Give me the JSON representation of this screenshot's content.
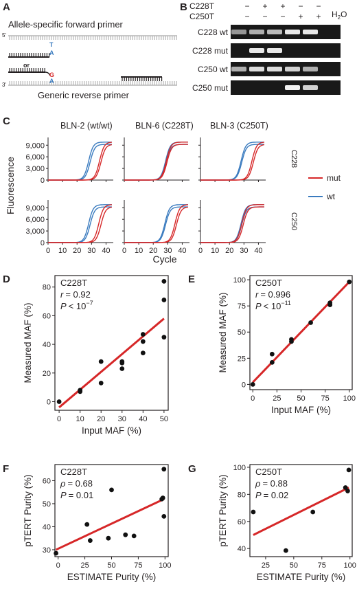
{
  "panels": {
    "A": {
      "letter": "A",
      "forward_label": "Allele-specific forward primer",
      "reverse_label": "Generic reverse primer",
      "or_text": "or",
      "template_five": "5'",
      "template_three": "3'",
      "primer_base_T": "T",
      "primer_base_A": "A",
      "primer_base_G": "G",
      "template_base_A": "A",
      "colors": {
        "T": "#3a7bbf",
        "A": "#3a7bbf",
        "G": "#d62728"
      }
    },
    "B": {
      "letter": "B",
      "row_headers": [
        "C228T",
        "C250T"
      ],
      "signs": [
        [
          "−",
          "+",
          "+",
          "−",
          "−"
        ],
        [
          "−",
          "−",
          "−",
          "+",
          "+"
        ]
      ],
      "h2o_label": "H",
      "h2o_sub": "2",
      "h2o_tail": "O",
      "gel_labels": [
        "C228 wt",
        "C228 mut",
        "C250 wt",
        "C250 mut"
      ],
      "band_intensity": [
        [
          0.55,
          0.65,
          0.7,
          0.9,
          0.9,
          0
        ],
        [
          0,
          0.9,
          0.9,
          0,
          0,
          0
        ],
        [
          0.65,
          0.85,
          0.85,
          0.8,
          0.65,
          0
        ],
        [
          0,
          0,
          0,
          0.95,
          0.8,
          0
        ]
      ]
    },
    "C": {
      "letter": "C",
      "columns": [
        "BLN-2 (wt/wt)",
        "BLN-6 (C228T)",
        "BLN-3 (C250T)"
      ],
      "rows": [
        "C228",
        "C250"
      ],
      "ylabel": "Fluorescence",
      "xlabel": "Cycle",
      "yticks": [
        "0",
        "3,000",
        "6,000",
        "9,000"
      ],
      "xticks": [
        "0",
        "10",
        "20",
        "30",
        "40"
      ],
      "legend": [
        {
          "name": "mut",
          "color": "#d62728"
        },
        {
          "name": "wt",
          "color": "#3a7bbf"
        }
      ]
    },
    "D": {
      "letter": "D",
      "label": "C228T",
      "r_label": "r",
      "r_value": "= 0.92",
      "p_label": "P",
      "p_value": "< 10",
      "p_exp": "−7"
    },
    "E": {
      "letter": "E",
      "label": "C250T",
      "r_label": "r",
      "r_value": "= 0.996",
      "p_label": "P",
      "p_value": "< 10",
      "p_exp": "−11"
    },
    "F": {
      "letter": "F",
      "label": "C228T",
      "r_label": "ρ",
      "r_value": "= 0.68",
      "p_label": "P",
      "p_value": "= 0.01",
      "p_exp": ""
    },
    "G": {
      "letter": "G",
      "label": "C250T",
      "r_label": "ρ",
      "r_value": "= 0.88",
      "p_label": "P",
      "p_value": "= 0.02",
      "p_exp": ""
    }
  },
  "chart_data": [
    {
      "type": "line",
      "panel": "C",
      "note_columns": [
        "BLN-2 (wt/wt)",
        "BLN-6 (C228T)",
        "BLN-3 (C250T)"
      ],
      "xlabel": "Cycle",
      "ylabel": "Fluorescence",
      "xlim": [
        0,
        45
      ],
      "ylim": [
        0,
        11000
      ],
      "plateau": 9800,
      "threshold_cycles": {
        "C228": {
          "BLN-2 (wt/wt)": {
            "wt": [
              28,
              29
            ],
            "mut": [
              35.5,
              36.5
            ]
          },
          "BLN-6 (C228T)": {
            "wt": [
              28.5,
              29
            ],
            "mut": [
              29,
              29.5
            ]
          },
          "BLN-3 (C250T)": {
            "wt": [
              28,
              28.5
            ],
            "mut": [
              35.5,
              36.5
            ]
          }
        },
        "C250": {
          "BLN-2 (wt/wt)": {
            "wt": [
              28,
              29
            ],
            "mut": [
              35,
              36.5
            ]
          },
          "BLN-6 (C228T)": {
            "wt": [
              28,
              28.5
            ],
            "mut": [
              35,
              36
            ]
          },
          "BLN-3 (C250T)": {
            "wt": [
              28,
              28.5
            ],
            "mut": [
              28.5,
              29.5
            ]
          }
        }
      },
      "series": [
        {
          "name": "mut",
          "color": "#d62728"
        },
        {
          "name": "wt",
          "color": "#3a7bbf"
        }
      ]
    },
    {
      "type": "scatter",
      "panel": "D",
      "xlabel": "Input MAF (%)",
      "ylabel": "Measured MAF (%)",
      "xlim": [
        -2,
        52
      ],
      "ylim": [
        -6,
        88
      ],
      "xticks": [
        0,
        10,
        20,
        30,
        40,
        50
      ],
      "yticks": [
        0,
        20,
        40,
        60,
        80
      ],
      "x": [
        0,
        10,
        10,
        20,
        20,
        30,
        30,
        30,
        40,
        40,
        40,
        50,
        50,
        50
      ],
      "y": [
        0,
        7,
        8,
        13,
        28,
        23,
        27,
        28,
        34,
        42,
        47,
        45,
        71,
        84
      ],
      "fit": {
        "x": [
          0,
          50
        ],
        "y": [
          -4,
          58
        ],
        "color": "#d62728"
      }
    },
    {
      "type": "scatter",
      "panel": "E",
      "xlabel": "Input MAF (%)",
      "ylabel": "Measured MAF (%)",
      "xlim": [
        -3,
        103
      ],
      "ylim": [
        -5,
        104
      ],
      "xticks": [
        0,
        25,
        50,
        75,
        100
      ],
      "yticks": [
        0,
        25,
        50,
        75,
        100
      ],
      "x": [
        0,
        20,
        20,
        40,
        40,
        60,
        80,
        80,
        100
      ],
      "y": [
        0,
        21,
        29,
        41,
        43,
        59,
        76,
        78,
        98
      ],
      "fit": {
        "x": [
          0,
          100
        ],
        "y": [
          2,
          98
        ],
        "color": "#d62728"
      }
    },
    {
      "type": "scatter",
      "panel": "F",
      "xlabel": "ESTIMATE Purity (%)",
      "ylabel": "pTERT Purity (%)",
      "xlim": [
        -3,
        103
      ],
      "ylim": [
        27,
        67
      ],
      "xticks": [
        0,
        25,
        50,
        75,
        100
      ],
      "yticks": [
        30,
        40,
        50,
        60
      ],
      "x": [
        -2,
        27,
        30,
        47,
        50,
        63,
        71,
        97,
        98,
        99,
        99
      ],
      "y": [
        28.5,
        41,
        34,
        35,
        56,
        36.5,
        36,
        52,
        52.5,
        65,
        44.5
      ],
      "fit": {
        "x": [
          -2,
          99
        ],
        "y": [
          30,
          52
        ],
        "color": "#d62728"
      }
    },
    {
      "type": "scatter",
      "panel": "G",
      "xlabel": "ESTIMATE Purity (%)",
      "ylabel": "pTERT Purity (%)",
      "xlim": [
        11,
        102
      ],
      "ylim": [
        34,
        102
      ],
      "xticks": [
        25,
        50,
        75,
        100
      ],
      "yticks": [
        40,
        60,
        80,
        100
      ],
      "x": [
        14,
        43,
        67,
        96,
        98,
        99
      ],
      "y": [
        67,
        38.5,
        67,
        85,
        82.5,
        98
      ],
      "fit": {
        "x": [
          14,
          99
        ],
        "y": [
          50,
          85
        ],
        "color": "#d62728"
      }
    }
  ]
}
